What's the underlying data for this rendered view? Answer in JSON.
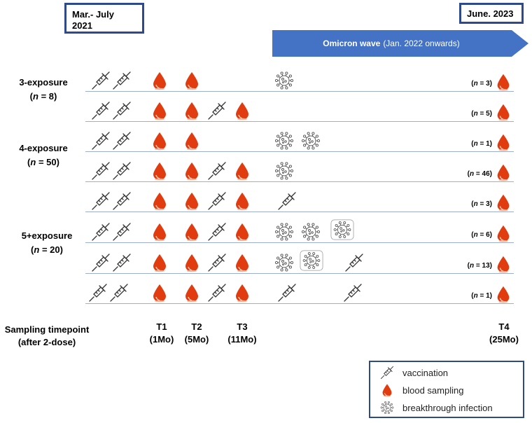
{
  "period_start": {
    "line1": "Mar.- July",
    "line2": "2021"
  },
  "period_end": "June. 2023",
  "omicron": {
    "label_bold": "Omicron wave",
    "label_rest": "(Jan. 2022 onwards)"
  },
  "groups": [
    {
      "line1": "3-exposure",
      "n_label": "n",
      "n_value": " = 8"
    },
    {
      "line1": "4-exposure",
      "n_label": "n",
      "n_value": " = 50"
    },
    {
      "line1": "5+exposure",
      "n_label": "n",
      "n_value": " = 20"
    }
  ],
  "rows": [
    {
      "n": "3",
      "icons": [
        "vaccine",
        "vaccine",
        "blood",
        "blood",
        "virus"
      ]
    },
    {
      "n": "5",
      "icons": [
        "vaccine",
        "vaccine",
        "blood",
        "blood",
        "vaccine",
        "blood"
      ]
    },
    {
      "n": "1",
      "icons": [
        "vaccine",
        "vaccine",
        "blood",
        "blood",
        "virus",
        "virus"
      ]
    },
    {
      "n": "46",
      "icons": [
        "vaccine",
        "vaccine",
        "blood",
        "blood",
        "vaccine",
        "blood",
        "virus"
      ]
    },
    {
      "n": "3",
      "icons": [
        "vaccine",
        "vaccine",
        "blood",
        "blood",
        "vaccine",
        "blood",
        "vaccine"
      ]
    },
    {
      "n": "6",
      "icons": [
        "vaccine",
        "vaccine",
        "blood",
        "blood",
        "vaccine",
        "blood",
        "virus",
        "virus",
        "virus-bracket"
      ]
    },
    {
      "n": "13",
      "icons": [
        "vaccine",
        "vaccine",
        "blood",
        "blood",
        "vaccine",
        "blood",
        "virus",
        "virus-bracket",
        "vaccine"
      ]
    },
    {
      "n": "1",
      "icons": [
        "vaccine",
        "vaccine",
        "blood",
        "blood",
        "vaccine",
        "blood",
        "vaccine",
        "vaccine"
      ]
    }
  ],
  "sampling": {
    "line1": "Sampling timepoint",
    "line2": "(after 2-dose)"
  },
  "timepoints": [
    {
      "label": "T1",
      "sub": "(1Mo)"
    },
    {
      "label": "T2",
      "sub": "(5Mo)"
    },
    {
      "label": "T3",
      "sub": "(11Mo)"
    },
    {
      "label": "T4",
      "sub": "(25Mo)"
    }
  ],
  "legend": [
    {
      "icon": "vaccine",
      "label": "vaccination"
    },
    {
      "icon": "blood",
      "label": "blood sampling"
    },
    {
      "icon": "virus",
      "label": "breakthrough infection"
    }
  ],
  "colors": {
    "arrow": "#4472c4",
    "box_border": "#2f4a8c",
    "row_line": "#9aaed6",
    "blood": "#e03c10"
  }
}
